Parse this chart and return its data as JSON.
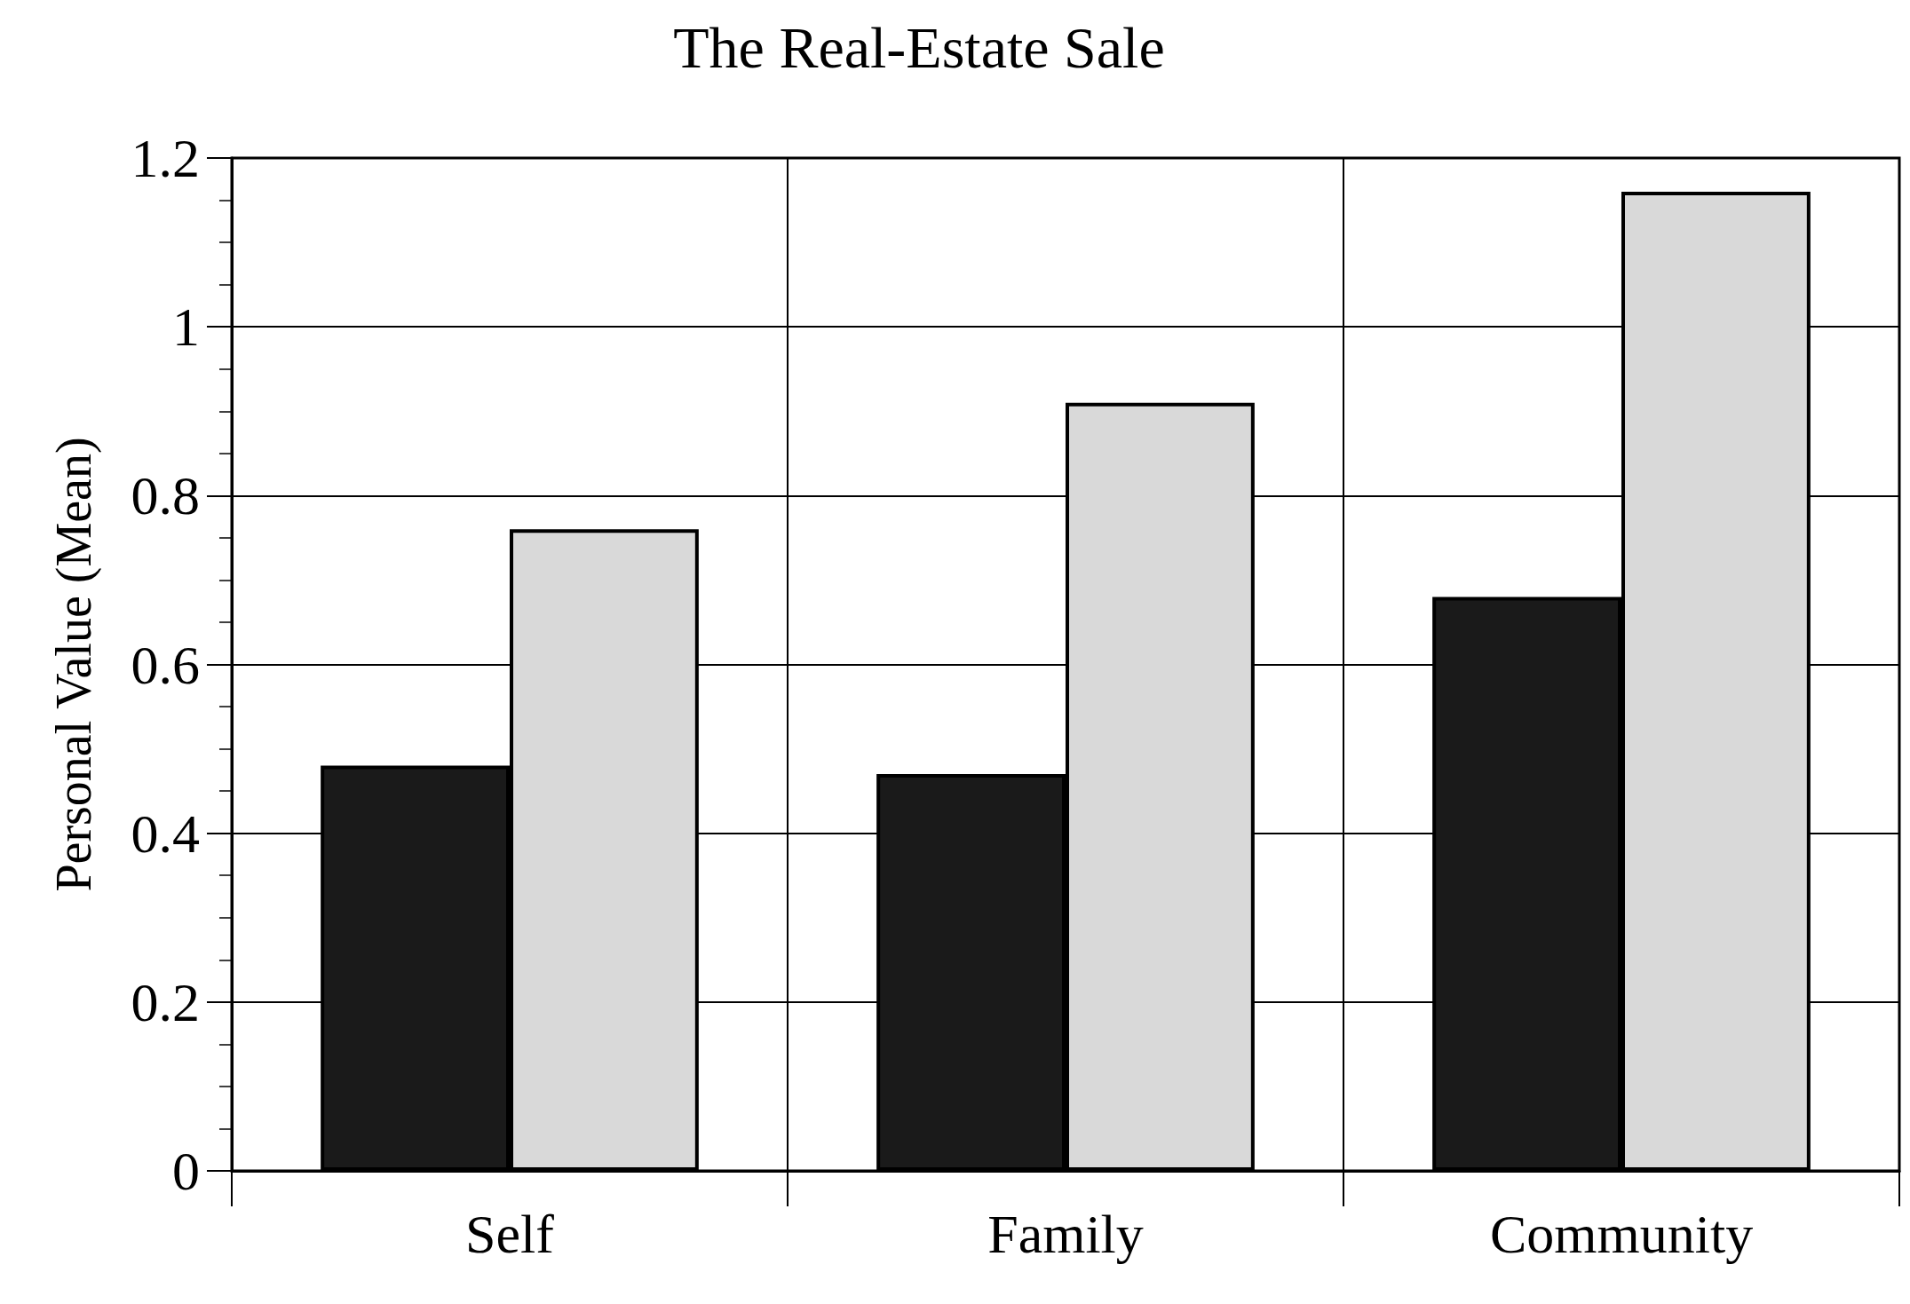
{
  "chart_data": {
    "type": "bar",
    "title": "The Real-Estate Sale",
    "ylabel": "Personal Value (Mean)",
    "categories": [
      "Self",
      "Family",
      "Community"
    ],
    "series": [
      {
        "color": "#1a1a1a",
        "values": [
          0.48,
          0.47,
          0.68
        ]
      },
      {
        "color": "#d9d9d9",
        "values": [
          0.76,
          0.91,
          1.16
        ]
      }
    ],
    "ylim": [
      0,
      1.2
    ],
    "yticks": [
      0,
      0.2,
      0.4,
      0.6,
      0.8,
      1,
      1.2
    ],
    "grid": true
  }
}
